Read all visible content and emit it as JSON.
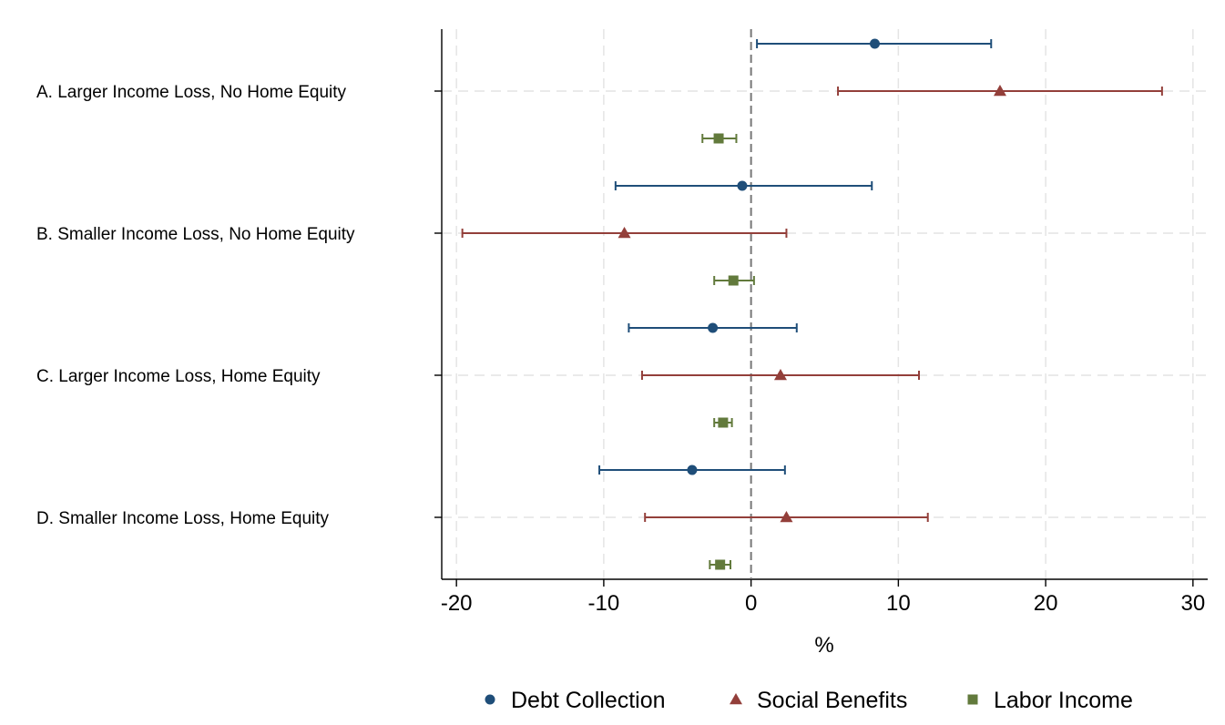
{
  "chart_data": {
    "type": "coefficient_plot",
    "categories": [
      "A. Larger Income Loss, No Home Equity",
      "B. Smaller Income Loss, No Home Equity",
      "C. Larger Income Loss, Home Equity",
      "D. Smaller Income Loss, Home Equity"
    ],
    "xlabel": "%",
    "xlim": [
      -21,
      31
    ],
    "xticks": [
      -20,
      -10,
      0,
      10,
      20,
      30
    ],
    "reference_line": 0,
    "grid": true,
    "legend_position": "bottom",
    "series": [
      {
        "name": "Debt Collection",
        "color": "#1f4e79",
        "marker": "circle",
        "points": [
          {
            "estimate": 8.4,
            "low": 0.4,
            "high": 16.3
          },
          {
            "estimate": -0.6,
            "low": -9.2,
            "high": 8.2
          },
          {
            "estimate": -2.6,
            "low": -8.3,
            "high": 3.1
          },
          {
            "estimate": -4.0,
            "low": -10.3,
            "high": 2.3
          }
        ]
      },
      {
        "name": "Social Benefits",
        "color": "#933f3a",
        "marker": "triangle",
        "points": [
          {
            "estimate": 16.9,
            "low": 5.9,
            "high": 27.9
          },
          {
            "estimate": -8.6,
            "low": -19.6,
            "high": 2.4
          },
          {
            "estimate": 2.0,
            "low": -7.4,
            "high": 11.4
          },
          {
            "estimate": 2.4,
            "low": -7.2,
            "high": 12.0
          }
        ]
      },
      {
        "name": "Labor Income",
        "color": "#627a3c",
        "marker": "square",
        "points": [
          {
            "estimate": -2.2,
            "low": -3.3,
            "high": -1.0
          },
          {
            "estimate": -1.2,
            "low": -2.5,
            "high": 0.2
          },
          {
            "estimate": -1.9,
            "low": -2.5,
            "high": -1.3
          },
          {
            "estimate": -2.1,
            "low": -2.8,
            "high": -1.4
          }
        ]
      }
    ]
  }
}
